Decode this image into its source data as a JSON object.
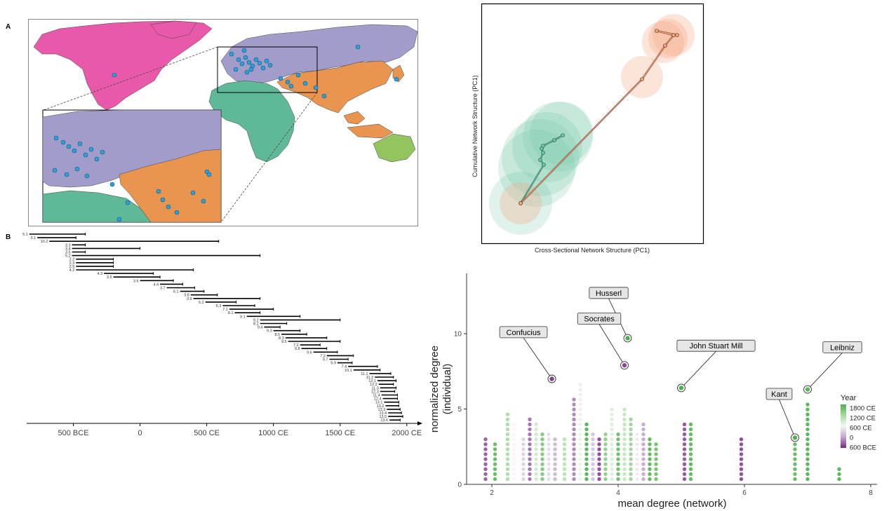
{
  "panels": {
    "a": "A",
    "b": "B"
  },
  "map": {
    "regions": {
      "north_america": "#e85aa9",
      "europe": "#a29cca",
      "asia": "#e9954f",
      "africa": "#5fb997",
      "oceania": "#94c460"
    },
    "ocean": "#ffffff",
    "point_color": "#2b9fd6"
  },
  "pca_plot": {
    "xlabel": "Cross-Sectional Network Structure (PC1)",
    "ylabel": "Cumulative Network Structure (PC1)",
    "colors": {
      "green": "#6cc4a4",
      "orange": "#f4a582"
    }
  },
  "timeline": {
    "ticks": [
      "500 BCE",
      "0",
      "500 CE",
      "1000 CE",
      "1500 CE",
      "2000 CE"
    ],
    "tick_values": [
      -500,
      0,
      500,
      1000,
      1500,
      2000
    ],
    "xlim": [
      -850,
      2080
    ],
    "bars": [
      {
        "label": "5.1",
        "start": -830,
        "end": -410
      },
      {
        "label": "3.1",
        "start": -770,
        "end": -480
      },
      {
        "label": "10.2",
        "start": -680,
        "end": 590
      },
      {
        "label": "3.3",
        "start": -510,
        "end": -410
      },
      {
        "label": "3.4",
        "start": -510,
        "end": 0
      },
      {
        "label": "3.5",
        "start": -510,
        "end": -410
      },
      {
        "label": "5.2",
        "start": -510,
        "end": 900
      },
      {
        "label": "2.2",
        "start": -480,
        "end": -200
      },
      {
        "label": "2.3",
        "start": -480,
        "end": -200
      },
      {
        "label": "2.5",
        "start": -480,
        "end": -200
      },
      {
        "label": "4.2",
        "start": -480,
        "end": 400
      },
      {
        "label": "4.3",
        "start": -270,
        "end": 100
      },
      {
        "label": "3.5",
        "start": -200,
        "end": 150
      },
      {
        "label": "3.6",
        "start": 0,
        "end": 250
      },
      {
        "label": "4.4",
        "start": 150,
        "end": 320
      },
      {
        "label": "3.7",
        "start": 200,
        "end": 410
      },
      {
        "label": "6.1",
        "start": 300,
        "end": 480
      },
      {
        "label": "3.8",
        "start": 380,
        "end": 580
      },
      {
        "label": "3.9",
        "start": 400,
        "end": 900
      },
      {
        "label": "6.2",
        "start": 490,
        "end": 720
      },
      {
        "label": "6.3",
        "start": 620,
        "end": 860
      },
      {
        "label": "7.1",
        "start": 670,
        "end": 1000
      },
      {
        "label": "8.1",
        "start": 710,
        "end": 900
      },
      {
        "label": "9.1",
        "start": 800,
        "end": 1200
      },
      {
        "label": "9.2",
        "start": 900,
        "end": 1500
      },
      {
        "label": "8.2",
        "start": 900,
        "end": 1100
      },
      {
        "label": "9.4",
        "start": 930,
        "end": 1050
      },
      {
        "label": "9.3",
        "start": 1000,
        "end": 1200
      },
      {
        "label": "8.5",
        "start": 1060,
        "end": 1250
      },
      {
        "label": "8.3",
        "start": 1090,
        "end": 1400
      },
      {
        "label": "9.5",
        "start": 1110,
        "end": 1500
      },
      {
        "label": "7.2",
        "start": 1200,
        "end": 1350
      },
      {
        "label": "9.8",
        "start": 1210,
        "end": 1400
      },
      {
        "label": "9.6",
        "start": 1300,
        "end": 1480
      },
      {
        "label": "7.3",
        "start": 1400,
        "end": 1600
      },
      {
        "label": "9.7",
        "start": 1420,
        "end": 1560
      },
      {
        "label": "9.9",
        "start": 1480,
        "end": 1590
      },
      {
        "label": "7.4",
        "start": 1560,
        "end": 1780
      },
      {
        "label": "10.1",
        "start": 1600,
        "end": 1800
      },
      {
        "label": "11.1",
        "start": 1720,
        "end": 1880
      },
      {
        "label": "11.2",
        "start": 1760,
        "end": 1900
      },
      {
        "label": "12.1",
        "start": 1780,
        "end": 1920
      },
      {
        "label": "12.2",
        "start": 1790,
        "end": 1900
      },
      {
        "label": "11.3",
        "start": 1800,
        "end": 1920
      },
      {
        "label": "12.3",
        "start": 1800,
        "end": 1910
      },
      {
        "label": "11.4",
        "start": 1810,
        "end": 1930
      },
      {
        "label": "12.4",
        "start": 1820,
        "end": 1930
      },
      {
        "label": "13.1",
        "start": 1830,
        "end": 1940
      },
      {
        "label": "13.2",
        "start": 1840,
        "end": 1940
      },
      {
        "label": "13.3",
        "start": 1850,
        "end": 1950
      },
      {
        "label": "13.4",
        "start": 1860,
        "end": 1960
      },
      {
        "label": "13.5",
        "start": 1860,
        "end": 1970
      },
      {
        "label": "13.6",
        "start": 1870,
        "end": 1950
      }
    ]
  },
  "chart_data": {
    "type": "scatter",
    "xlabel": "mean degree (network)",
    "ylabel_line1": "normalized degree",
    "ylabel_line2": "(individual)",
    "xlim": [
      1.6,
      8.1
    ],
    "ylim": [
      0,
      14
    ],
    "x_ticks": [
      "2",
      "4",
      "6",
      "8"
    ],
    "x_tick_values": [
      2,
      4,
      6,
      8
    ],
    "y_ticks": [
      "0",
      "5",
      "10"
    ],
    "y_tick_values": [
      0,
      5,
      10
    ],
    "legend": {
      "title": "Year",
      "labels": [
        "1800 CE",
        "1200 CE",
        "600 CE",
        "0",
        "600 BCE"
      ],
      "colors": [
        "#4daf4a",
        "#a6dba0",
        "#f7f7f7",
        "#c2a5cf",
        "#762a83"
      ]
    },
    "column_x": [
      1.9,
      2.05,
      2.25,
      2.35,
      2.5,
      2.6,
      2.7,
      2.8,
      2.9,
      3.0,
      3.15,
      3.3,
      3.4,
      3.5,
      3.6,
      3.7,
      3.8,
      3.9,
      4.0,
      4.1,
      4.2,
      4.3,
      4.4,
      4.5,
      4.6,
      5.05,
      5.15,
      5.95,
      6.8,
      7.0,
      7.5
    ],
    "column_max": [
      3.2,
      2.8,
      4.7,
      4.2,
      3.1,
      4.5,
      4.2,
      3.4,
      3.6,
      3.0,
      3.1,
      5.7,
      6.7,
      4.0,
      3.5,
      3.2,
      3.6,
      5.0,
      3.5,
      5.0,
      4.6,
      3.6,
      4.2,
      3.0,
      2.8,
      4.0,
      4.1,
      3.1,
      3.3,
      5.5,
      1.1
    ],
    "column_year": [
      -400,
      1700,
      1200,
      600,
      300,
      -300,
      900,
      1500,
      400,
      100,
      1100,
      -200,
      700,
      1800,
      200,
      -500,
      1400,
      800,
      1650,
      1000,
      1300,
      500,
      0,
      1750,
      1600,
      -450,
      1750,
      -500,
      1700,
      1800,
      1850
    ],
    "highlights": [
      {
        "name": "Confucius",
        "x": 2.95,
        "y": 7.0,
        "year": -500,
        "lx": 2.5,
        "ly": 10.1
      },
      {
        "name": "Husserl",
        "x": 4.15,
        "y": 9.7,
        "year": 1900,
        "lx": 3.85,
        "ly": 12.7
      },
      {
        "name": "Socrates",
        "x": 4.1,
        "y": 7.9,
        "year": -450,
        "lx": 3.7,
        "ly": 11.0
      },
      {
        "name": "John Stuart Mill",
        "x": 5.0,
        "y": 6.4,
        "year": 1850,
        "lx": 5.55,
        "ly": 9.2
      },
      {
        "name": "Leibniz",
        "x": 7.0,
        "y": 6.3,
        "year": 1700,
        "lx": 7.55,
        "ly": 9.1
      },
      {
        "name": "Kant",
        "x": 6.8,
        "y": 3.1,
        "year": 1780,
        "lx": 6.55,
        "ly": 6.0
      }
    ]
  }
}
